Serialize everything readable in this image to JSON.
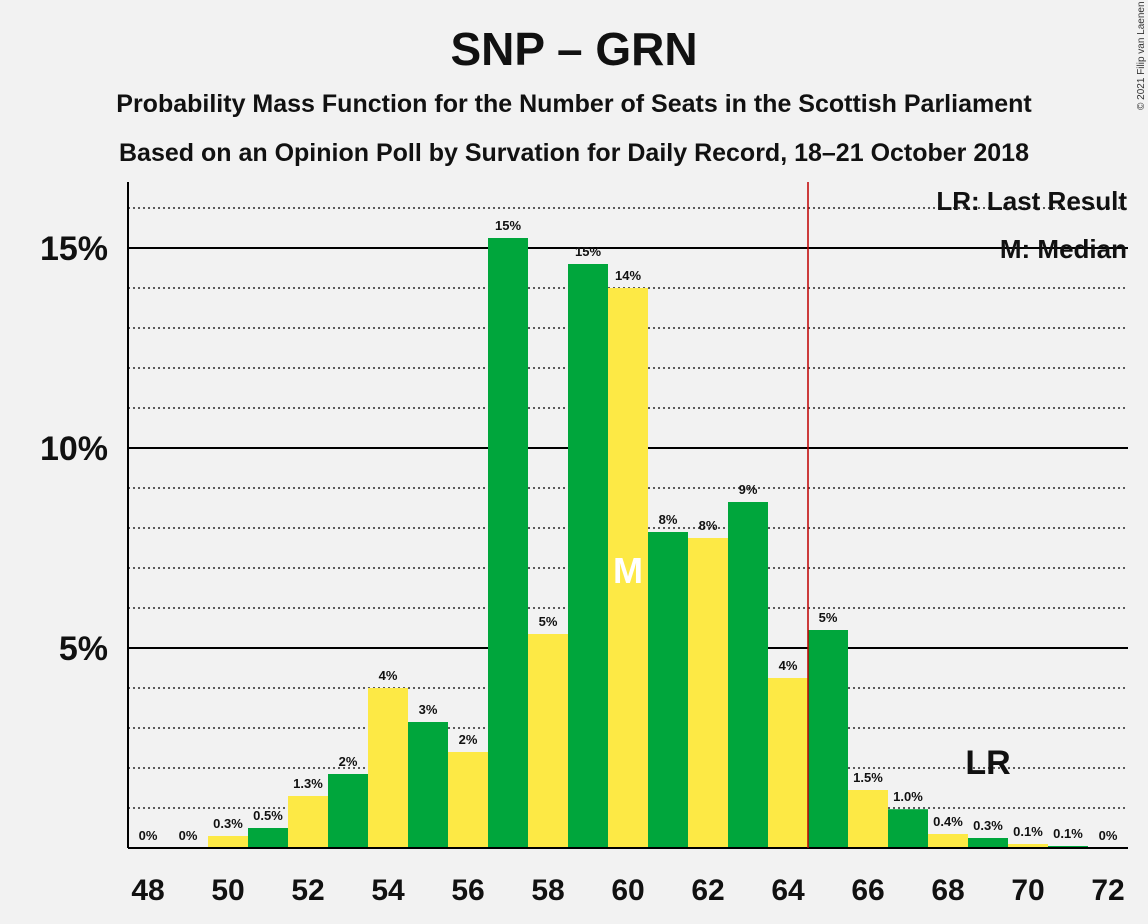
{
  "header": {
    "title": "SNP – GRN",
    "subtitle1": "Probability Mass Function for the Number of Seats in the Scottish Parliament",
    "subtitle2": "Based on an Opinion Poll by Survation for Daily Record, 18–21 October 2018",
    "copyright": "© 2021 Filip van Laenen"
  },
  "colors": {
    "green": "#00a63c",
    "yellow": "#fde945",
    "majority_line": "#c00000",
    "background": "#f2f2f2"
  },
  "chart_data": {
    "type": "bar",
    "title": "SNP – GRN",
    "x": [
      48,
      49,
      50,
      51,
      52,
      53,
      54,
      55,
      56,
      57,
      58,
      59,
      60,
      61,
      62,
      63,
      64,
      65,
      66,
      67,
      68,
      69,
      70,
      71,
      72
    ],
    "values": [
      0,
      0,
      0.3,
      0.5,
      1.3,
      1.85,
      4.0,
      3.15,
      2.4,
      15.25,
      5.35,
      14.6,
      14.0,
      7.9,
      7.75,
      8.65,
      4.25,
      5.45,
      1.45,
      0.97,
      0.35,
      0.25,
      0.1,
      0.05,
      0
    ],
    "labels": [
      "0%",
      "0%",
      "0.3%",
      "0.5%",
      "1.3%",
      "2%",
      "4%",
      "3%",
      "2%",
      "15%",
      "5%",
      "15%",
      "14%",
      "8%",
      "8%",
      "9%",
      "4%",
      "5%",
      "1.5%",
      "1.0%",
      "0.4%",
      "0.3%",
      "0.1%",
      "0.1%",
      "0%"
    ],
    "bar_colors": [
      "green",
      "yellow",
      "yellow",
      "green",
      "yellow",
      "green",
      "yellow",
      "green",
      "yellow",
      "green",
      "yellow",
      "green",
      "yellow",
      "green",
      "yellow",
      "green",
      "yellow",
      "green",
      "yellow",
      "green",
      "yellow",
      "green",
      "yellow",
      "green",
      "yellow"
    ],
    "x_ticks": [
      "48",
      "50",
      "52",
      "54",
      "56",
      "58",
      "60",
      "62",
      "64",
      "66",
      "68",
      "70",
      "72"
    ],
    "y_ticks": [
      {
        "value": 5,
        "label": "5%"
      },
      {
        "value": 10,
        "label": "10%"
      },
      {
        "value": 15,
        "label": "15%"
      }
    ],
    "ylim": [
      0,
      16.5
    ],
    "grid": "solid at labelled ticks, dotted every 1%",
    "majority_threshold": 64.5,
    "median": {
      "seat": 60,
      "mark": "M"
    },
    "last_result": {
      "seat": 69,
      "mark": "LR"
    },
    "legend": {
      "position": "top-right",
      "entries": [
        "LR: Last Result",
        "M: Median"
      ]
    }
  }
}
